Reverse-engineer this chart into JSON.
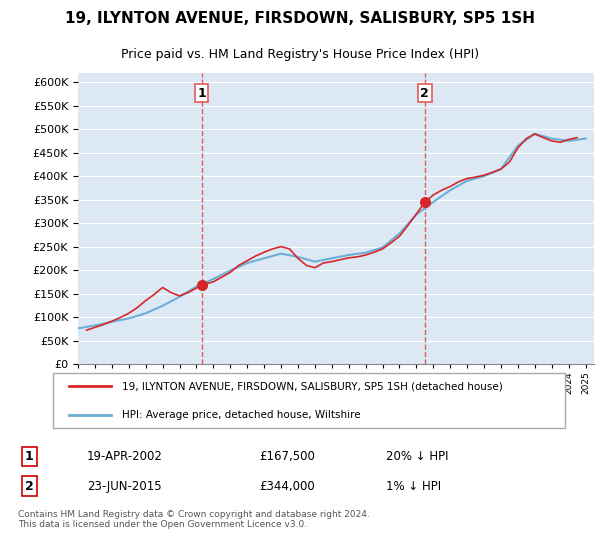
{
  "title": "19, ILYNTON AVENUE, FIRSDOWN, SALISBURY, SP5 1SH",
  "subtitle": "Price paid vs. HM Land Registry's House Price Index (HPI)",
  "legend_line1": "19, ILYNTON AVENUE, FIRSDOWN, SALISBURY, SP5 1SH (detached house)",
  "legend_line2": "HPI: Average price, detached house, Wiltshire",
  "annotation1_label": "1",
  "annotation1_date": "19-APR-2002",
  "annotation1_price": "£167,500",
  "annotation1_hpi": "20% ↓ HPI",
  "annotation2_label": "2",
  "annotation2_date": "23-JUN-2015",
  "annotation2_price": "£344,000",
  "annotation2_hpi": "1% ↓ HPI",
  "footer": "Contains HM Land Registry data © Crown copyright and database right 2024.\nThis data is licensed under the Open Government Licence v3.0.",
  "ylim": [
    0,
    620000
  ],
  "yticks": [
    0,
    50000,
    100000,
    150000,
    200000,
    250000,
    300000,
    350000,
    400000,
    450000,
    500000,
    550000,
    600000
  ],
  "sale1_year": 2002.3,
  "sale1_value": 167500,
  "sale2_year": 2015.5,
  "sale2_value": 344000,
  "hpi_color": "#6baed6",
  "sale_color": "#d62728",
  "vline_color": "#e05c5c",
  "background_color": "#dce9f5",
  "plot_bg": "#dce9f5",
  "hpi_years": [
    1995,
    1996,
    1997,
    1998,
    1999,
    2000,
    2001,
    2002,
    2003,
    2004,
    2005,
    2006,
    2007,
    2008,
    2009,
    2010,
    2011,
    2012,
    2013,
    2014,
    2015,
    2016,
    2017,
    2018,
    2019,
    2020,
    2021,
    2022,
    2023,
    2024,
    2025
  ],
  "hpi_values": [
    76000,
    82000,
    90000,
    97000,
    108000,
    124000,
    143000,
    165000,
    181000,
    199000,
    215000,
    225000,
    235000,
    228000,
    218000,
    225000,
    232000,
    237000,
    248000,
    278000,
    318000,
    345000,
    370000,
    390000,
    400000,
    415000,
    465000,
    490000,
    480000,
    475000,
    480000
  ],
  "price_years": [
    1995.5,
    1996,
    1996.5,
    1997,
    1997.5,
    1998,
    1998.5,
    1999,
    1999.5,
    2000,
    2000.5,
    2001,
    2001.5,
    2002.3,
    2003,
    2003.5,
    2004,
    2004.5,
    2005,
    2005.5,
    2006,
    2006.5,
    2007,
    2007.5,
    2008,
    2008.5,
    2009,
    2009.5,
    2010,
    2010.5,
    2011,
    2011.5,
    2012,
    2012.5,
    2013,
    2013.5,
    2014,
    2014.5,
    2015.5,
    2016,
    2016.5,
    2017,
    2017.5,
    2018,
    2018.5,
    2019,
    2019.5,
    2020,
    2020.5,
    2021,
    2021.5,
    2022,
    2022.5,
    2023,
    2023.5,
    2024,
    2024.5
  ],
  "price_values": [
    72000,
    78000,
    84000,
    91000,
    99000,
    108000,
    120000,
    135000,
    148000,
    163000,
    152000,
    145000,
    152000,
    167500,
    175000,
    185000,
    195000,
    210000,
    220000,
    230000,
    238000,
    245000,
    250000,
    245000,
    225000,
    210000,
    205000,
    215000,
    218000,
    222000,
    226000,
    228000,
    232000,
    238000,
    245000,
    258000,
    272000,
    295000,
    344000,
    360000,
    370000,
    378000,
    388000,
    395000,
    398000,
    402000,
    408000,
    415000,
    430000,
    460000,
    480000,
    490000,
    482000,
    475000,
    472000,
    478000,
    482000
  ]
}
